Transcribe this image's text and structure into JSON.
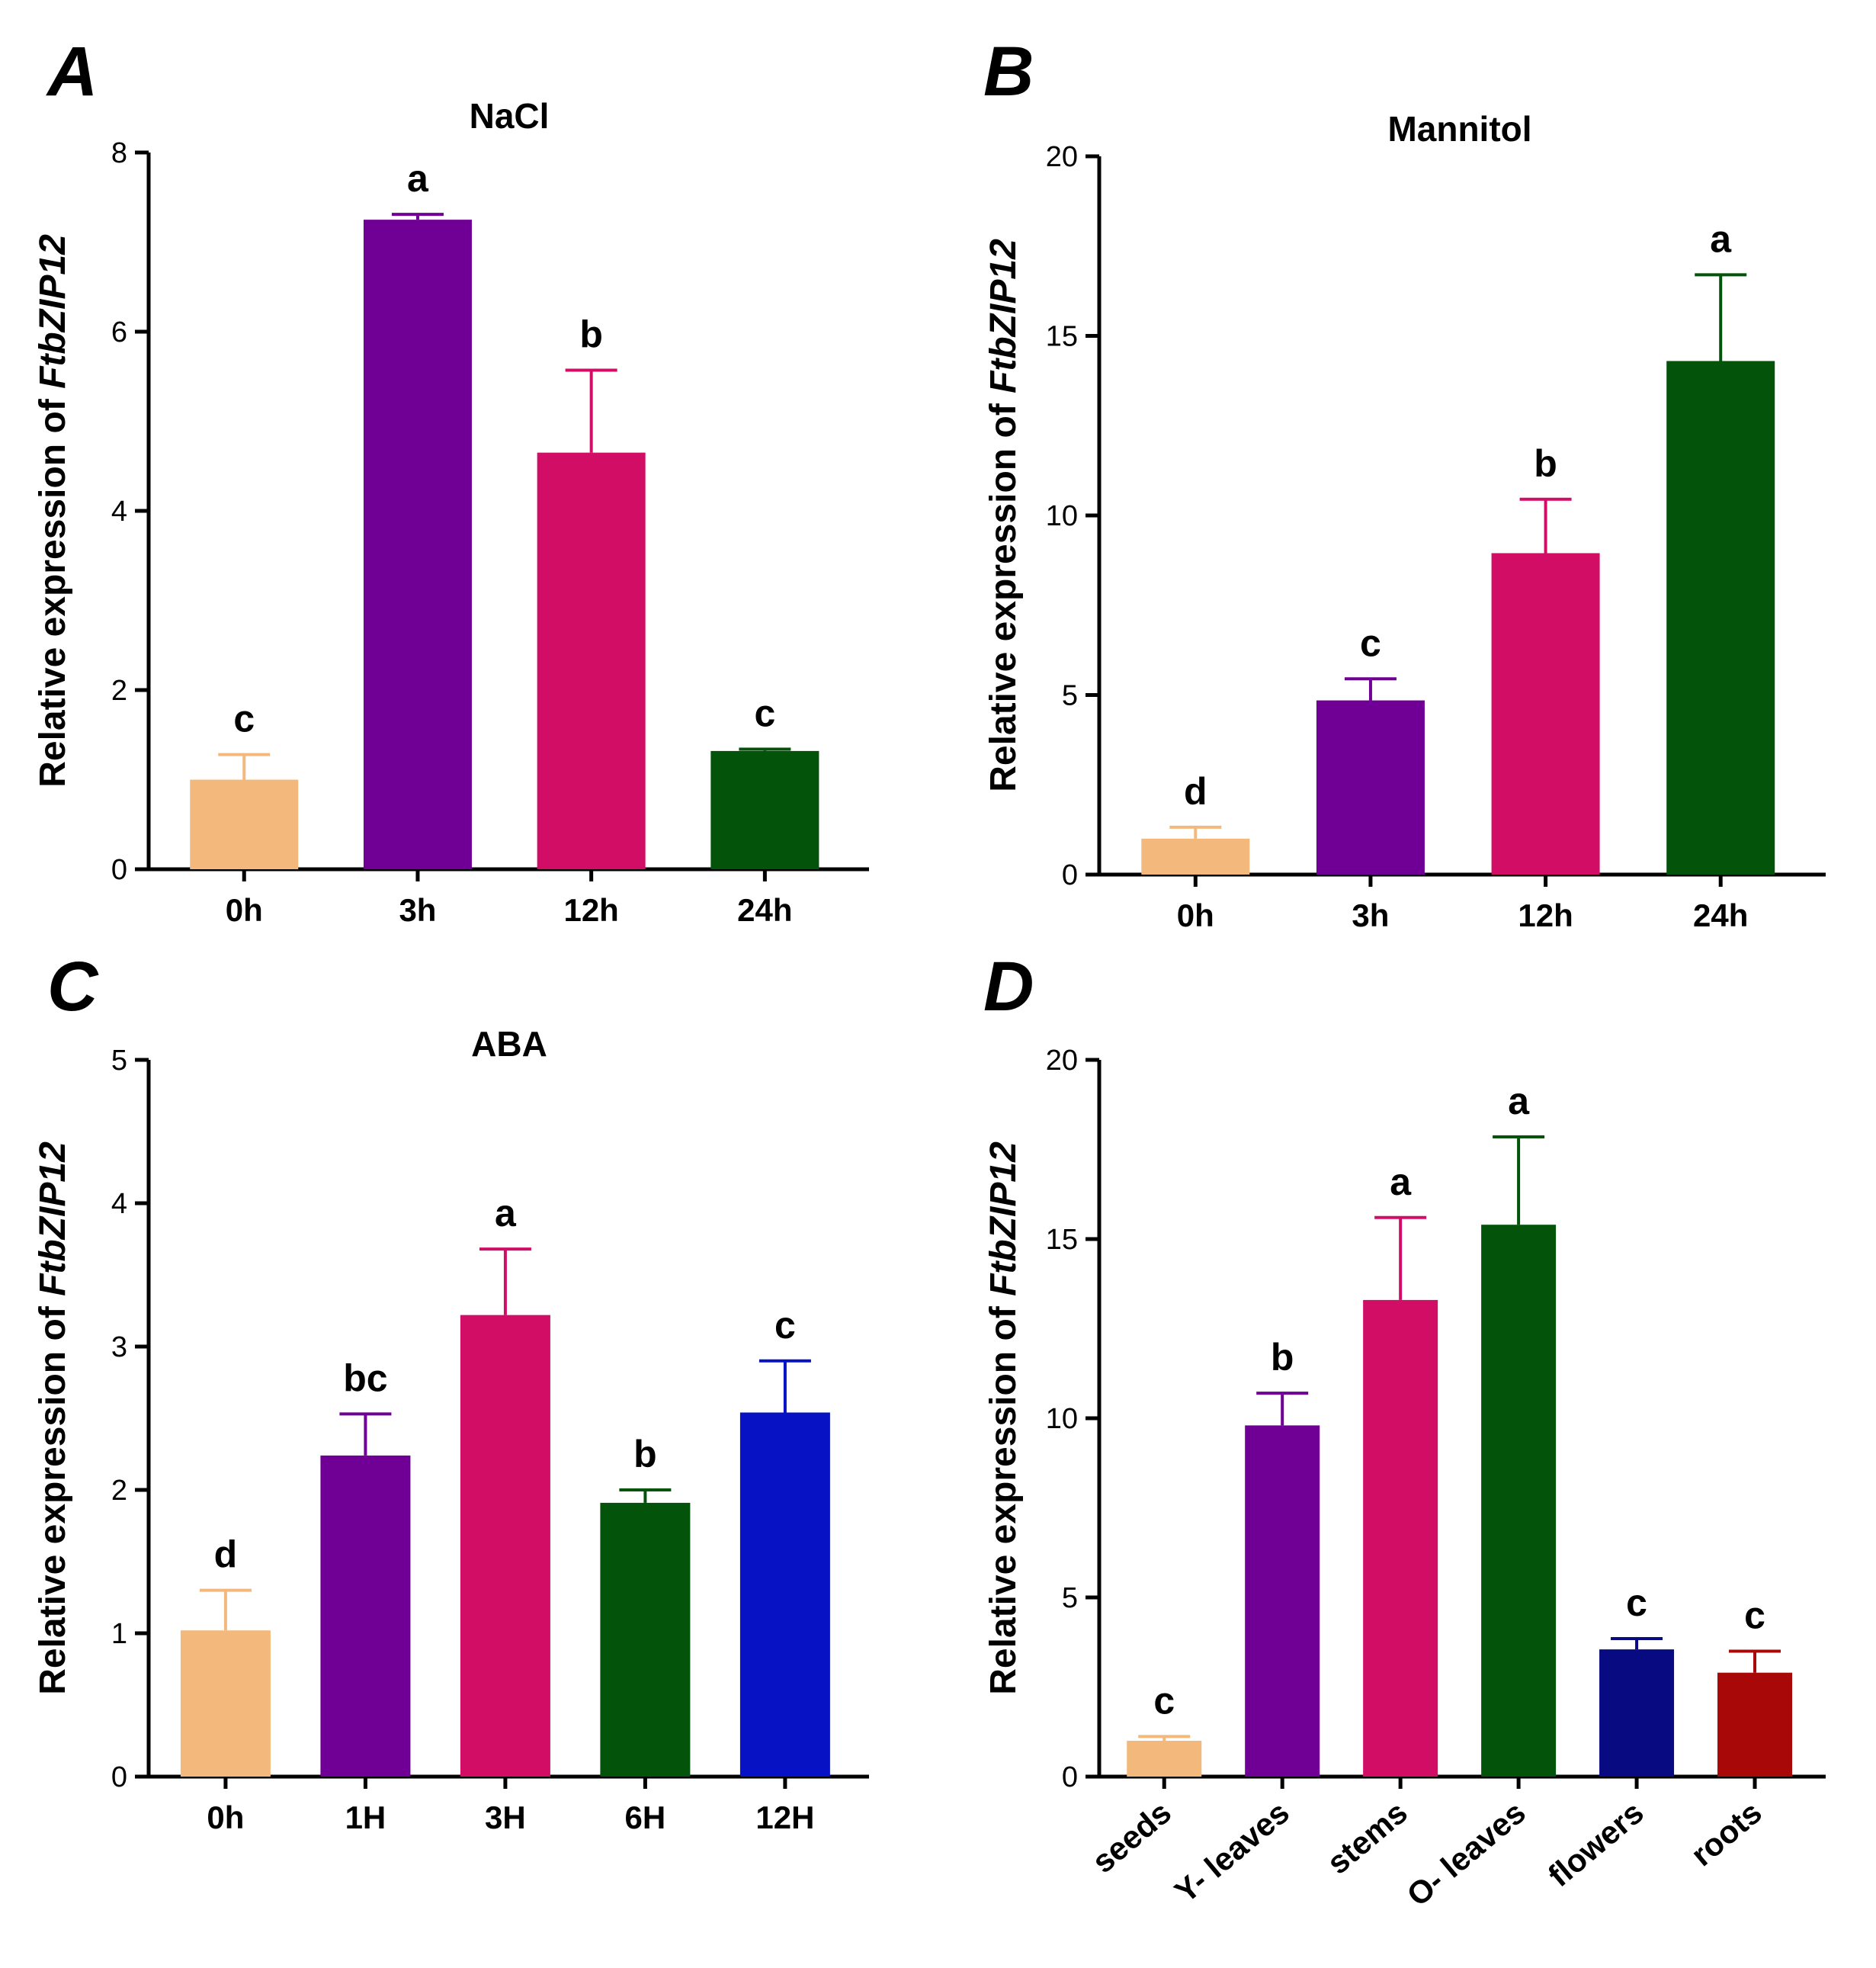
{
  "chart_data": [
    {
      "panel": "A",
      "type": "bar",
      "title": "NaCl",
      "ylabel": "Relative expression of ",
      "ylabel_italic": "FtbZIP12",
      "xlabel": "",
      "ylim": [
        0,
        8
      ],
      "yticks": [
        0,
        2,
        4,
        6,
        8
      ],
      "categories": [
        "0h",
        "3h",
        "12h",
        "24h"
      ],
      "values": [
        1.0,
        7.25,
        4.65,
        1.32
      ],
      "errors": [
        0.28,
        0.06,
        0.92,
        0.02
      ],
      "significance": [
        "c",
        "a",
        "b",
        "c"
      ],
      "colors": [
        "#F3B97C",
        "#700095",
        "#D10D66",
        "#03540A"
      ]
    },
    {
      "panel": "B",
      "type": "bar",
      "title": "Mannitol",
      "ylabel": "Relative expression of ",
      "ylabel_italic": "FtbZIP12",
      "xlabel": "",
      "ylim": [
        0,
        20
      ],
      "yticks": [
        0,
        5,
        10,
        15,
        20
      ],
      "categories": [
        "0h",
        "3h",
        "12h",
        "24h"
      ],
      "values": [
        1.0,
        4.85,
        8.95,
        14.3
      ],
      "errors": [
        0.32,
        0.6,
        1.5,
        2.4
      ],
      "significance": [
        "d",
        "c",
        "b",
        "a"
      ],
      "colors": [
        "#F3B97C",
        "#700095",
        "#D10D66",
        "#03540A"
      ]
    },
    {
      "panel": "C",
      "type": "bar",
      "title": "ABA",
      "ylabel": "Relative expression of ",
      "ylabel_italic": "FtbZIP12",
      "xlabel": "",
      "ylim": [
        0,
        5
      ],
      "yticks": [
        0,
        1,
        2,
        3,
        4,
        5
      ],
      "categories": [
        "0h",
        "1H",
        "3H",
        "6H",
        "12H"
      ],
      "values": [
        1.02,
        2.24,
        3.22,
        1.91,
        2.54
      ],
      "errors": [
        0.28,
        0.29,
        0.46,
        0.09,
        0.36
      ],
      "significance": [
        "d",
        "bc",
        "a",
        "b",
        "c"
      ],
      "colors": [
        "#F3B97C",
        "#700095",
        "#D10D66",
        "#03540A",
        "#0712C4"
      ]
    },
    {
      "panel": "D",
      "type": "bar",
      "title": "",
      "ylabel": "Relative expression of ",
      "ylabel_italic": "FtbZIP12",
      "xlabel": "",
      "ylim": [
        0,
        20
      ],
      "yticks": [
        0,
        5,
        10,
        15,
        20
      ],
      "categories": [
        "seeds",
        "Y- leaves",
        "stems",
        "O- leaves",
        "flowers",
        "roots"
      ],
      "values": [
        1.0,
        9.8,
        13.3,
        15.4,
        3.55,
        2.9
      ],
      "errors": [
        0.12,
        0.9,
        2.3,
        2.45,
        0.3,
        0.6
      ],
      "significance": [
        "c",
        "b",
        "a",
        "a",
        "c",
        "c"
      ],
      "colors": [
        "#F3B97C",
        "#700095",
        "#D10D66",
        "#03540A",
        "#080A82",
        "#A80808"
      ]
    }
  ]
}
